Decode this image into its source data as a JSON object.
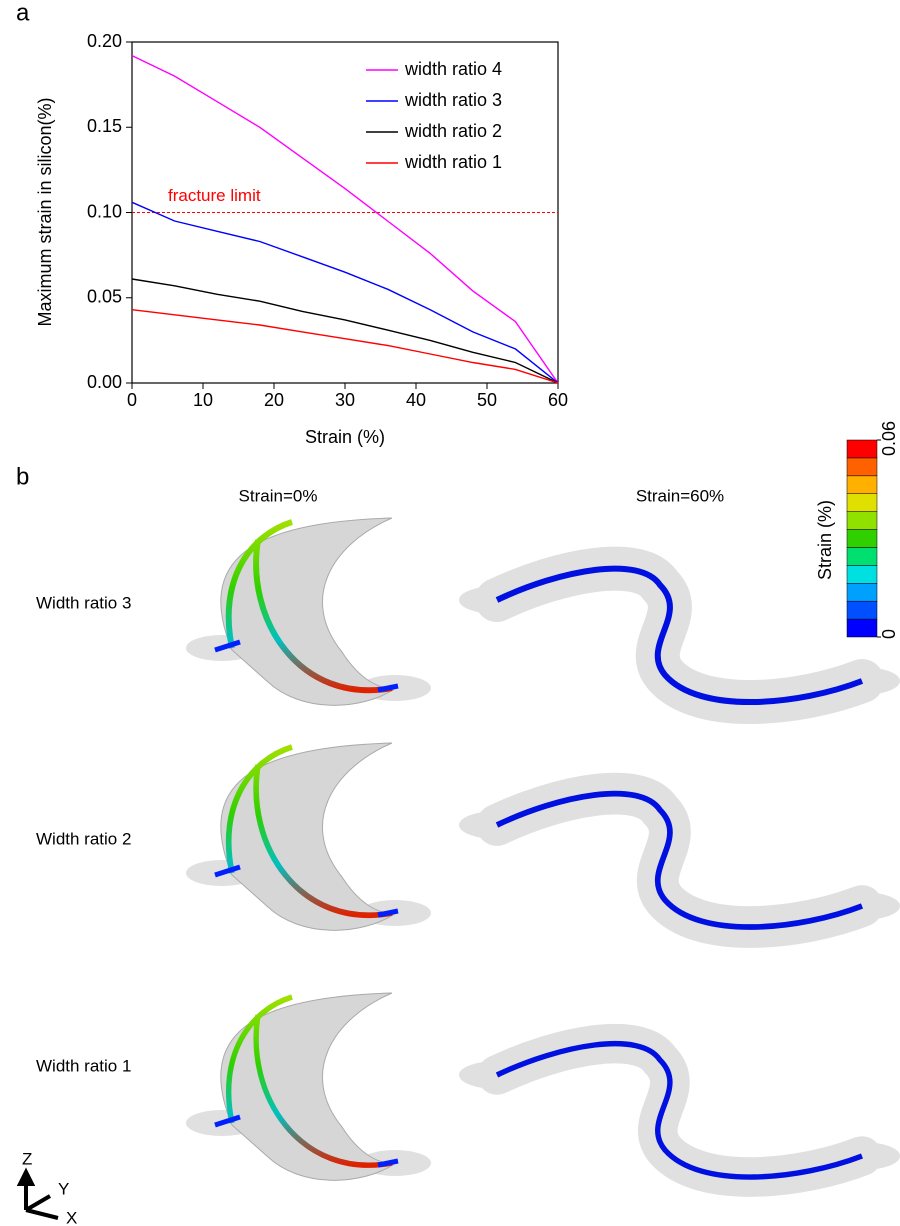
{
  "panel_labels": [
    "a",
    "b"
  ],
  "chart_data": {
    "type": "line",
    "x_label": "Strain (%)",
    "y_label": "Maximum strain in silicon(%)",
    "x": [
      0,
      6,
      12,
      18,
      24,
      30,
      36,
      42,
      48,
      54,
      60
    ],
    "series": [
      {
        "name": "width ratio 4",
        "color": "#ff00ff",
        "values": [
          0.192,
          0.18,
          0.165,
          0.15,
          0.132,
          0.114,
          0.095,
          0.076,
          0.054,
          0.036,
          0.0
        ]
      },
      {
        "name": "width ratio 3",
        "color": "#0000ff",
        "values": [
          0.106,
          0.095,
          0.089,
          0.083,
          0.074,
          0.065,
          0.055,
          0.043,
          0.03,
          0.02,
          0.0
        ]
      },
      {
        "name": "width ratio 2",
        "color": "#000000",
        "values": [
          0.061,
          0.057,
          0.052,
          0.048,
          0.042,
          0.037,
          0.031,
          0.025,
          0.018,
          0.012,
          0.0
        ]
      },
      {
        "name": "width ratio 1",
        "color": "#ff0000",
        "values": [
          0.043,
          0.04,
          0.037,
          0.034,
          0.03,
          0.026,
          0.022,
          0.017,
          0.012,
          0.008,
          0.0
        ]
      }
    ],
    "xlim": [
      0,
      60
    ],
    "xticks": [
      0,
      10,
      20,
      30,
      40,
      50,
      60
    ],
    "ylim": [
      0,
      0.2
    ],
    "yticks": [
      {
        "value": 0,
        "label": "0.00"
      },
      0.05,
      {
        "value": 0.1,
        "label": "0.10"
      },
      0.15,
      {
        "value": 0.2,
        "label": "0.20"
      }
    ],
    "reference_line": {
      "value": 0.1,
      "label": "fracture limit",
      "color": "#ff0000"
    },
    "legend": "upper right"
  },
  "panel_b": {
    "column_titles": [
      "Strain=0%",
      "Strain=60%"
    ],
    "row_labels": [
      "Width ratio 3",
      "Width ratio 2",
      "Width ratio 1"
    ],
    "colorbar": {
      "label": "Strain (%)",
      "lim": [
        0,
        0.06
      ],
      "ticks": [
        0,
        0.06
      ],
      "colors": [
        "#0000ff",
        "#0050ff",
        "#00a0ff",
        "#00e0e0",
        "#00e070",
        "#30d000",
        "#90e000",
        "#e0e000",
        "#ffb000",
        "#ff6000",
        "#ff0000"
      ]
    },
    "axes_triad": [
      "Z",
      "Y",
      "X"
    ]
  }
}
